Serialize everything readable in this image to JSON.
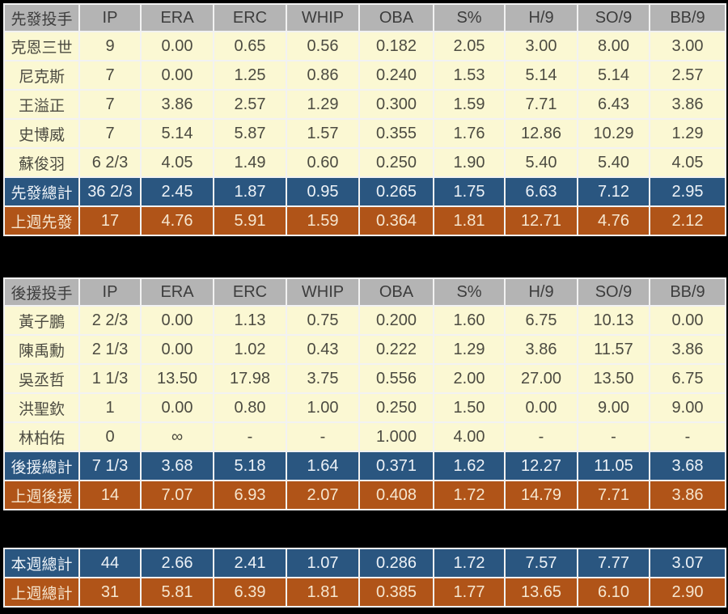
{
  "colors": {
    "background": "#000000",
    "header_bg": "#B4B4B4",
    "header_text": "#3D3D3D",
    "row_bg": "#FBF8D3",
    "row_text": "#4C4B41",
    "total_bg": "#2A5680",
    "total_text": "#EDF2F7",
    "lastweek_bg": "#B05418",
    "lastweek_text": "#F6E6CF",
    "border": "#F2F2F2"
  },
  "chart_data": [
    {
      "type": "table",
      "title": "先發投手",
      "columns": [
        "IP",
        "ERA",
        "ERC",
        "WHIP",
        "OBA",
        "S%",
        "H/9",
        "SO/9",
        "BB/9"
      ],
      "rows": [
        {
          "label": "克恩三世",
          "kind": "player",
          "values": [
            "9",
            "0.00",
            "0.65",
            "0.56",
            "0.182",
            "2.05",
            "3.00",
            "8.00",
            "3.00"
          ]
        },
        {
          "label": "尼克斯",
          "kind": "player",
          "values": [
            "7",
            "0.00",
            "1.25",
            "0.86",
            "0.240",
            "1.53",
            "5.14",
            "5.14",
            "2.57"
          ]
        },
        {
          "label": "王溢正",
          "kind": "player",
          "values": [
            "7",
            "3.86",
            "2.57",
            "1.29",
            "0.300",
            "1.59",
            "7.71",
            "6.43",
            "3.86"
          ]
        },
        {
          "label": "史博威",
          "kind": "player",
          "values": [
            "7",
            "5.14",
            "5.87",
            "1.57",
            "0.355",
            "1.76",
            "12.86",
            "10.29",
            "1.29"
          ]
        },
        {
          "label": "蘇俊羽",
          "kind": "player",
          "values": [
            "6 2/3",
            "4.05",
            "1.49",
            "0.60",
            "0.250",
            "1.90",
            "5.40",
            "5.40",
            "4.05"
          ]
        },
        {
          "label": "先發總計",
          "kind": "total",
          "values": [
            "36 2/3",
            "2.45",
            "1.87",
            "0.95",
            "0.265",
            "1.75",
            "6.63",
            "7.12",
            "2.95"
          ]
        },
        {
          "label": "上週先發",
          "kind": "lastweek",
          "values": [
            "17",
            "4.76",
            "5.91",
            "1.59",
            "0.364",
            "1.81",
            "12.71",
            "4.76",
            "2.12"
          ]
        }
      ]
    },
    {
      "type": "table",
      "title": "後援投手",
      "columns": [
        "IP",
        "ERA",
        "ERC",
        "WHIP",
        "OBA",
        "S%",
        "H/9",
        "SO/9",
        "BB/9"
      ],
      "rows": [
        {
          "label": "黃子鵬",
          "kind": "player",
          "values": [
            "2 2/3",
            "0.00",
            "1.13",
            "0.75",
            "0.200",
            "1.60",
            "6.75",
            "10.13",
            "0.00"
          ]
        },
        {
          "label": "陳禹勳",
          "kind": "player",
          "values": [
            "2 1/3",
            "0.00",
            "1.02",
            "0.43",
            "0.222",
            "1.29",
            "3.86",
            "11.57",
            "3.86"
          ]
        },
        {
          "label": "吳丞哲",
          "kind": "player",
          "values": [
            "1 1/3",
            "13.50",
            "17.98",
            "3.75",
            "0.556",
            "2.00",
            "27.00",
            "13.50",
            "6.75"
          ]
        },
        {
          "label": "洪聖欽",
          "kind": "player",
          "values": [
            "1",
            "0.00",
            "0.80",
            "1.00",
            "0.250",
            "1.50",
            "0.00",
            "9.00",
            "9.00"
          ]
        },
        {
          "label": "林柏佑",
          "kind": "player",
          "values": [
            "0",
            "∞",
            "-",
            "-",
            "1.000",
            "4.00",
            "-",
            "-",
            "-"
          ]
        },
        {
          "label": "後援總計",
          "kind": "total",
          "values": [
            "7 1/3",
            "3.68",
            "5.18",
            "1.64",
            "0.371",
            "1.62",
            "12.27",
            "11.05",
            "3.68"
          ]
        },
        {
          "label": "上週後援",
          "kind": "lastweek",
          "values": [
            "14",
            "7.07",
            "6.93",
            "2.07",
            "0.408",
            "1.72",
            "14.79",
            "7.71",
            "3.86"
          ]
        }
      ]
    },
    {
      "type": "table",
      "title": null,
      "rows": [
        {
          "label": "本週總計",
          "kind": "total",
          "values": [
            "44",
            "2.66",
            "2.41",
            "1.07",
            "0.286",
            "1.72",
            "7.57",
            "7.77",
            "3.07"
          ]
        },
        {
          "label": "上週總計",
          "kind": "lastweek",
          "values": [
            "31",
            "5.81",
            "6.39",
            "1.81",
            "0.385",
            "1.77",
            "13.65",
            "6.10",
            "2.90"
          ]
        }
      ]
    }
  ]
}
